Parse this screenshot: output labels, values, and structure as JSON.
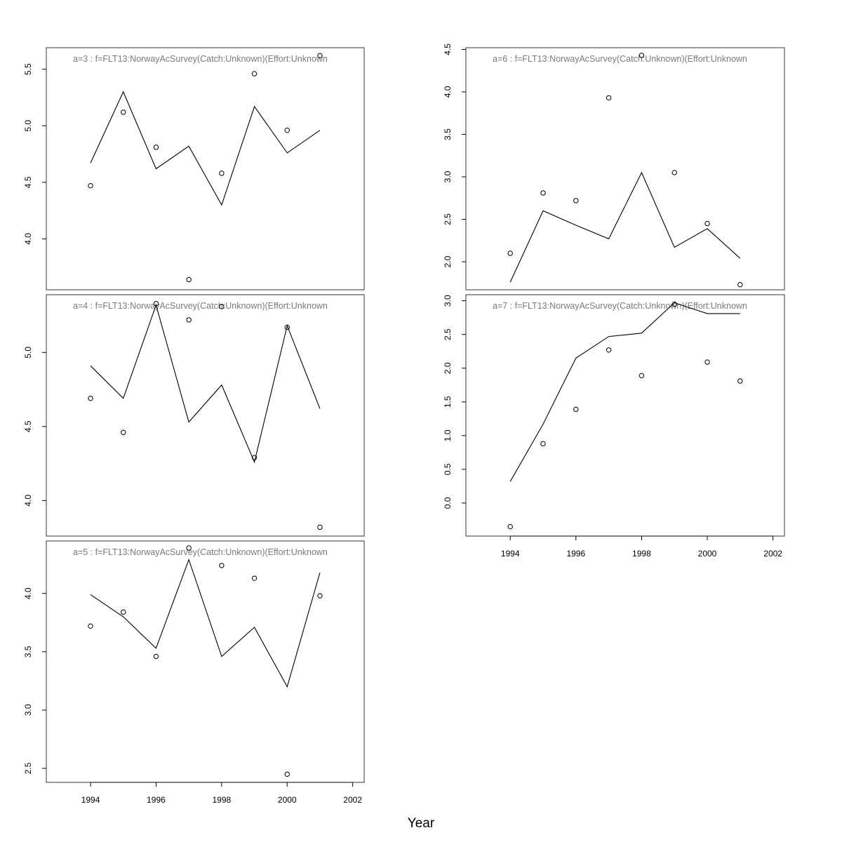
{
  "figure": {
    "xlabel": "Year"
  },
  "chart_data": [
    {
      "type": "line",
      "title": "a=3  :  f=FLT13:NorwayAcSurvey(Catch:Unknown)(Effort:Unknown",
      "xlabel": "",
      "ylabel": "",
      "x": [
        1994,
        1995,
        1996,
        1997,
        1998,
        1999,
        2000,
        2001
      ],
      "series": [
        {
          "kind": "line",
          "values": [
            4.67,
            5.3,
            4.62,
            4.82,
            4.3,
            5.17,
            4.76,
            4.96
          ]
        },
        {
          "kind": "points",
          "values": [
            4.47,
            5.12,
            4.81,
            3.64,
            4.58,
            5.46,
            4.96,
            5.62
          ]
        }
      ],
      "xlim": [
        1992.65,
        2002.35
      ],
      "ylim": [
        3.55,
        5.69
      ],
      "yticks": [
        4.0,
        4.5,
        5.0,
        5.5
      ],
      "xticks": [],
      "grid": false
    },
    {
      "type": "line",
      "title": "a=4  :  f=FLT13:NorwayAcSurvey(Catch:Unknown)(Effort:Unknown",
      "xlabel": "",
      "ylabel": "",
      "x": [
        1994,
        1995,
        1996,
        1997,
        1998,
        1999,
        2000,
        2001
      ],
      "series": [
        {
          "kind": "line",
          "values": [
            4.91,
            4.69,
            5.32,
            4.53,
            4.78,
            4.26,
            5.18,
            4.62
          ]
        },
        {
          "kind": "points",
          "values": [
            4.69,
            4.46,
            5.33,
            5.22,
            5.31,
            4.29,
            5.17,
            3.82
          ]
        }
      ],
      "xlim": [
        1992.65,
        2002.35
      ],
      "ylim": [
        3.76,
        5.39
      ],
      "yticks": [
        4.0,
        4.5,
        5.0
      ],
      "xticks": [],
      "grid": false
    },
    {
      "type": "line",
      "title": "a=5  :  f=FLT13:NorwayAcSurvey(Catch:Unknown)(Effort:Unknown",
      "xlabel": "",
      "ylabel": "",
      "x": [
        1994,
        1995,
        1996,
        1997,
        1998,
        1999,
        2000,
        2001
      ],
      "series": [
        {
          "kind": "line",
          "values": [
            3.99,
            3.8,
            3.53,
            4.29,
            3.46,
            3.71,
            3.2,
            4.18
          ]
        },
        {
          "kind": "points",
          "values": [
            3.72,
            3.84,
            3.46,
            4.39,
            4.24,
            4.13,
            2.45,
            3.98
          ]
        }
      ],
      "xlim": [
        1992.65,
        2002.35
      ],
      "ylim": [
        2.38,
        4.45
      ],
      "yticks": [
        2.5,
        3.0,
        3.5,
        4.0
      ],
      "xticks": [
        1994,
        1996,
        1998,
        2000,
        2002
      ],
      "grid": false
    },
    {
      "type": "line",
      "title": "a=6  :  f=FLT13:NorwayAcSurvey(Catch:Unknown)(Effort:Unknown",
      "xlabel": "",
      "ylabel": "",
      "x": [
        1994,
        1995,
        1996,
        1997,
        1998,
        1999,
        2000,
        2001
      ],
      "series": [
        {
          "kind": "line",
          "values": [
            1.76,
            2.6,
            2.43,
            2.27,
            3.05,
            2.17,
            2.39,
            2.04
          ]
        },
        {
          "kind": "points",
          "values": [
            2.1,
            2.81,
            2.72,
            3.93,
            4.43,
            3.05,
            2.45,
            1.73
          ]
        }
      ],
      "xlim": [
        1992.65,
        2002.35
      ],
      "ylim": [
        1.67,
        4.52
      ],
      "yticks": [
        2.0,
        2.5,
        3.0,
        3.5,
        4.0,
        4.5
      ],
      "xticks": [],
      "grid": false
    },
    {
      "type": "line",
      "title": "a=7  :  f=FLT13:NorwayAcSurvey(Catch:Unknown)(Effort:Unknown",
      "xlabel": "",
      "ylabel": "",
      "x": [
        1994,
        1995,
        1996,
        1997,
        1998,
        1999,
        2000,
        2001
      ],
      "series": [
        {
          "kind": "line",
          "values": [
            0.32,
            1.17,
            2.15,
            2.47,
            2.52,
            2.97,
            2.81,
            2.81
          ]
        },
        {
          "kind": "points",
          "values": [
            -0.35,
            0.88,
            1.39,
            2.27,
            1.89,
            2.95,
            2.09,
            1.81
          ]
        }
      ],
      "xlim": [
        1992.65,
        2002.35
      ],
      "ylim": [
        -0.49,
        3.09
      ],
      "yticks": [
        0.0,
        0.5,
        1.0,
        1.5,
        2.0,
        2.5,
        3.0
      ],
      "xticks": [
        1994,
        1996,
        1998,
        2000,
        2002
      ],
      "grid": false
    }
  ]
}
